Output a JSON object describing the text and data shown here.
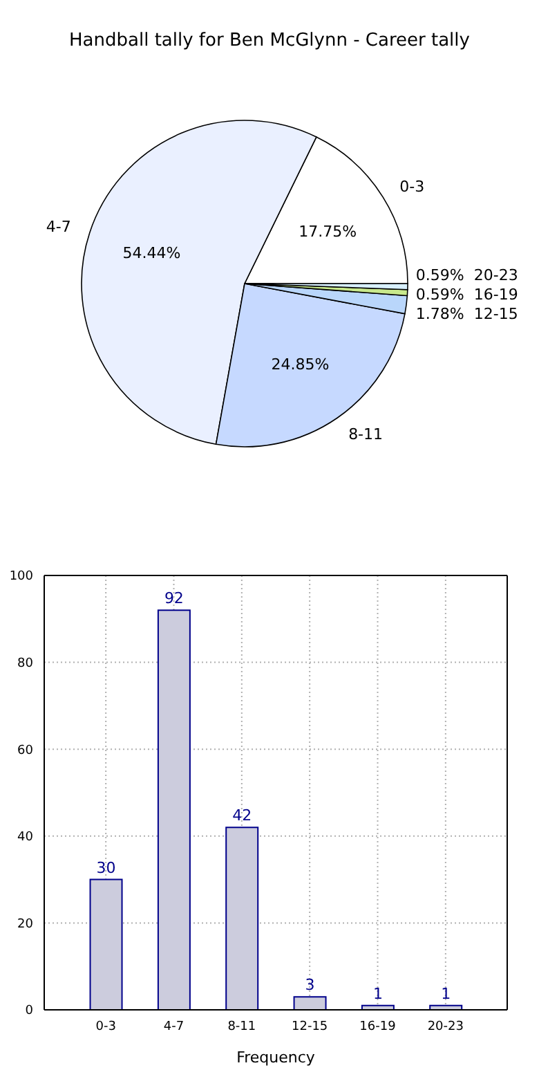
{
  "chart_data": [
    {
      "type": "pie",
      "title": "Handball tally for Ben McGlynn - Career tally",
      "categories": [
        "0-3",
        "4-7",
        "8-11",
        "12-15",
        "16-19",
        "20-23"
      ],
      "values": [
        17.75,
        54.44,
        24.85,
        1.78,
        0.59,
        0.59
      ],
      "colors": [
        "#ffffff",
        "#eaf0ff",
        "#c6d9ff",
        "#b9d6fb",
        "#c8e88c",
        "#d8f0ff"
      ],
      "value_labels": [
        "17.75%",
        "54.44%",
        "24.85%",
        "1.78%",
        "0.59%",
        "0.59%"
      ]
    },
    {
      "type": "bar",
      "categories": [
        "0-3",
        "4-7",
        "8-11",
        "12-15",
        "16-19",
        "20-23"
      ],
      "values": [
        30,
        92,
        42,
        3,
        1,
        1
      ],
      "color": "#ccccdd",
      "xlabel": "Frequency",
      "ylim": [
        0,
        100
      ],
      "yticks": [
        0,
        20,
        40,
        60,
        80,
        100
      ],
      "grid": true,
      "data_labels": true
    }
  ]
}
